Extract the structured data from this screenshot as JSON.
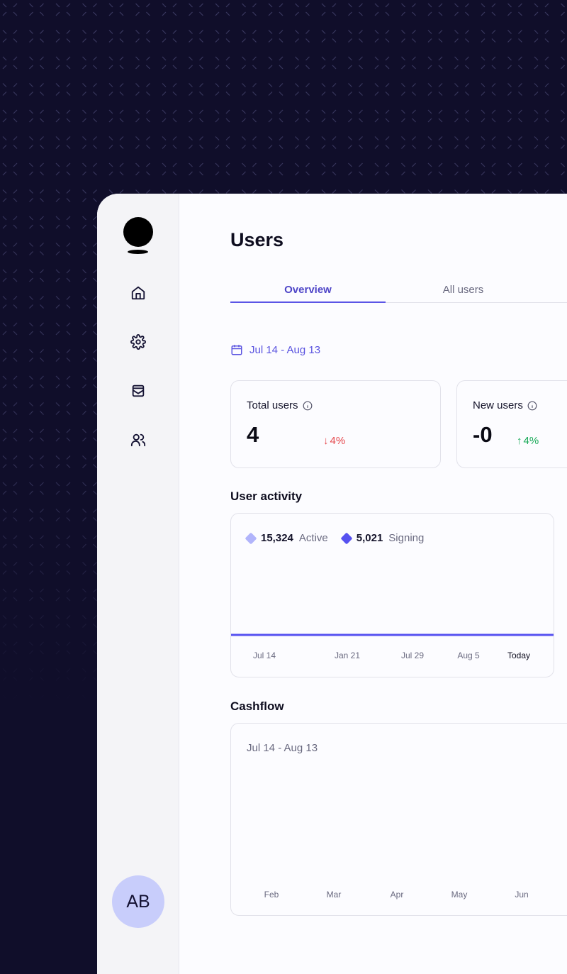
{
  "page": {
    "title": "Users"
  },
  "tabs": [
    {
      "label": "Overview",
      "active": true
    },
    {
      "label": "All users",
      "active": false
    }
  ],
  "date_range": "Jul 14 - Aug 13",
  "sidebar": {
    "items": [
      {
        "icon": "home-icon"
      },
      {
        "icon": "gear-icon"
      },
      {
        "icon": "inbox-icon"
      },
      {
        "icon": "users-icon"
      }
    ],
    "avatar": "AB"
  },
  "stats": [
    {
      "label": "Total users",
      "value": "4",
      "change": "4%",
      "direction": "down",
      "color": "#e5484d"
    },
    {
      "label": "New users",
      "value": "-0",
      "change": "4%",
      "direction": "up",
      "color": "#18a957"
    }
  ],
  "user_activity": {
    "title": "User activity",
    "legend": [
      {
        "value": "15,324",
        "label": "Active",
        "color": "#b1b4fb"
      },
      {
        "value": "5,021",
        "label": "Signing",
        "color": "#5651f0"
      }
    ]
  },
  "chart_data": {
    "type": "line",
    "categories": [
      "Jul 14",
      "Jan 21",
      "Jul 29",
      "Aug 5",
      "Today"
    ],
    "series": [
      {
        "values": [
          0,
          0,
          0,
          0,
          0
        ],
        "color": "#5651f0"
      }
    ]
  },
  "cashflow": {
    "title": "Cashflow",
    "date_range": "Jul 14 - Aug 13",
    "months": [
      "Feb",
      "Mar",
      "Apr",
      "May",
      "Jun"
    ]
  }
}
